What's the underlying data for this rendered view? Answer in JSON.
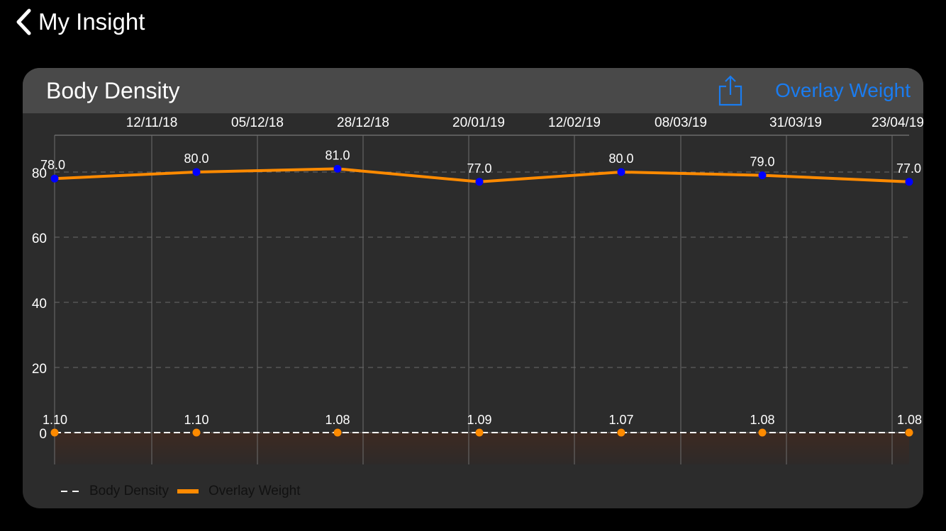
{
  "nav": {
    "back_label": "My Insight"
  },
  "card": {
    "title": "Body Density",
    "overlay_button": "Overlay Weight",
    "share_icon": "share-icon"
  },
  "colors": {
    "accent": "#1a7cf0",
    "weight_line": "#ff8a00",
    "weight_points": "#0000ff",
    "density_line": "#ffffff",
    "density_points": "#ff8a00"
  },
  "chart_data": {
    "type": "line",
    "x_ticks": [
      "12/11/18",
      "05/12/18",
      "28/12/18",
      "20/01/19",
      "12/02/19",
      "08/03/19",
      "31/03/19",
      "23/04/19"
    ],
    "y_ticks": [
      "0",
      "20",
      "40",
      "60",
      "80"
    ],
    "ylim": [
      0,
      80
    ],
    "grid": true,
    "legend_position": "bottom-left",
    "series": [
      {
        "name": "Body Density",
        "style": "dashed",
        "values": [
          1.1,
          1.1,
          1.08,
          1.09,
          1.07,
          1.08,
          1.08
        ],
        "labels": [
          "1.10",
          "1.10",
          "1.08",
          "1.09",
          "1.07",
          "1.08",
          "1.08"
        ]
      },
      {
        "name": "Overlay Weight",
        "style": "solid",
        "values": [
          78.0,
          80.0,
          81.0,
          77.0,
          80.0,
          79.0,
          77.0
        ],
        "labels": [
          "78.0",
          "80.0",
          "81.0",
          "77.0",
          "80.0",
          "79.0",
          "77.0"
        ]
      }
    ]
  }
}
